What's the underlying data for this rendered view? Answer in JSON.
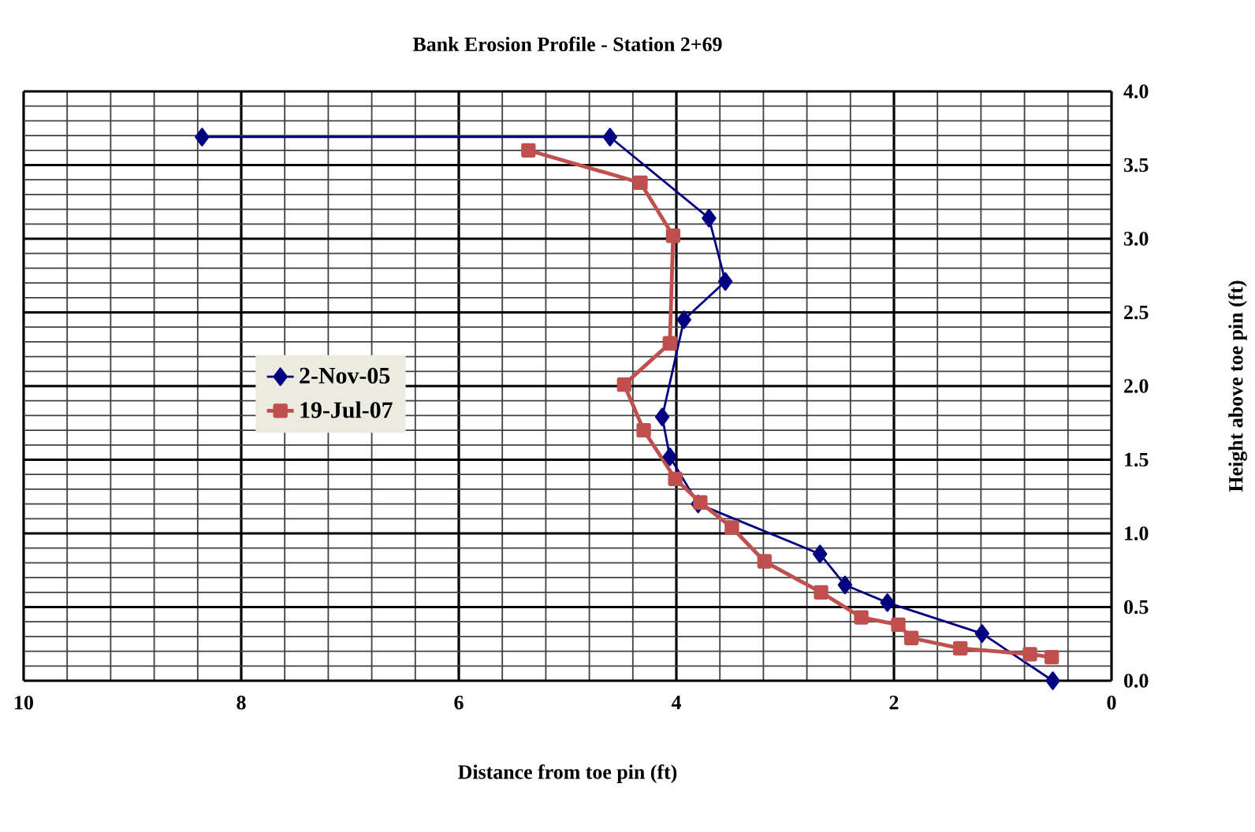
{
  "chart_data": {
    "type": "line",
    "title": "Bank Erosion Profile - Station 2+69",
    "xlabel": "Distance from toe pin (ft)",
    "ylabel": "Height above toe pin (ft)",
    "xlim": [
      10,
      0
    ],
    "xticks": [
      10,
      8,
      6,
      4,
      2,
      0
    ],
    "ylim": [
      0,
      4
    ],
    "yticks": [
      {
        "value": 0,
        "label": "0.0"
      },
      {
        "value": 0.5,
        "label": "0.5"
      },
      {
        "value": 1,
        "label": "1.0"
      },
      {
        "value": 1.5,
        "label": "1.5"
      },
      {
        "value": 2,
        "label": "2.0"
      },
      {
        "value": 2.5,
        "label": "2.5"
      },
      {
        "value": 3,
        "label": "3.0"
      },
      {
        "value": 3.5,
        "label": "3.5"
      },
      {
        "value": 4,
        "label": "4.0"
      }
    ],
    "grid": true,
    "legend": "left",
    "series": [
      {
        "name": "2-Nov-05",
        "color": "#000080",
        "marker": "diamond",
        "x": [
          8.36,
          4.61,
          3.7,
          3.55,
          3.93,
          4.13,
          4.06,
          3.8,
          2.68,
          2.45,
          2.06,
          1.19,
          0.54
        ],
        "values": [
          3.69,
          3.69,
          3.14,
          2.71,
          2.45,
          1.79,
          1.52,
          1.2,
          0.86,
          0.65,
          0.53,
          0.32,
          0.0
        ]
      },
      {
        "name": "19-Jul-07",
        "color": "#c0504d",
        "marker": "square",
        "x": [
          5.36,
          4.33,
          4.03,
          4.06,
          4.48,
          4.3,
          4.01,
          3.78,
          3.49,
          3.19,
          2.67,
          2.3,
          1.96,
          1.84,
          1.39,
          0.75,
          0.55
        ],
        "values": [
          3.6,
          3.38,
          3.02,
          2.29,
          2.01,
          1.7,
          1.37,
          1.21,
          1.04,
          0.81,
          0.6,
          0.43,
          0.38,
          0.29,
          0.22,
          0.18,
          0.16
        ]
      }
    ]
  }
}
